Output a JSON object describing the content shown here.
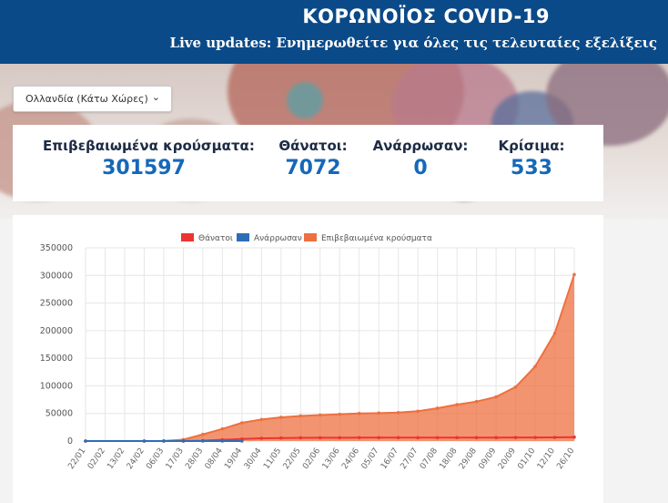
{
  "header": {
    "title": "ΚΟΡΩΝΟΪΟΣ COVID-19",
    "subtitle": "Live updates: Ενημερωθείτε για όλες τις τελευταίες εξελίξεις"
  },
  "country_select": {
    "value": "Ολλανδία (Κάτω Χώρες)"
  },
  "stats": [
    {
      "label": "Επιβεβαιωμένα κρούσματα:",
      "value": "301597"
    },
    {
      "label": "Θάνατοι:",
      "value": "7072"
    },
    {
      "label": "Ανάρρωσαν:",
      "value": "0"
    },
    {
      "label": "Κρίσιμα:",
      "value": "533"
    }
  ],
  "colors": {
    "header": "#0b4a88",
    "deaths": "#ee3333",
    "recovered": "#2c6db8",
    "confirmed": "#ee7040",
    "stat_value": "#1668b8"
  },
  "chart_data": {
    "type": "area",
    "legend_position": "top",
    "ylim": [
      0,
      350000
    ],
    "yticks": [
      0,
      50000,
      100000,
      150000,
      200000,
      250000,
      300000,
      350000
    ],
    "ytick_labels": [
      "0",
      "50000",
      "100000",
      "150000",
      "200000",
      "250000",
      "300000",
      "350000"
    ],
    "xtick_labels": [
      "22/01",
      "02/02",
      "13/02",
      "24/02",
      "06/03",
      "17/03",
      "28/03",
      "08/04",
      "19/04",
      "30/04",
      "11/05",
      "22/05",
      "02/06",
      "13/06",
      "24/06",
      "05/07",
      "16/07",
      "27/07",
      "07/08",
      "18/08",
      "29/08",
      "09/09",
      "20/09",
      "01/10",
      "12/10",
      "26/10"
    ],
    "series": [
      {
        "name": "Θάνατοι",
        "type": "line",
        "x": [
          "22/01",
          "24/02",
          "06/03",
          "17/03",
          "28/03",
          "08/04",
          "19/04",
          "30/04",
          "11/05",
          "22/05",
          "02/06",
          "13/06",
          "24/06",
          "05/07",
          "16/07",
          "27/07",
          "07/08",
          "18/08",
          "29/08",
          "09/09",
          "20/09",
          "01/10",
          "12/10",
          "26/10"
        ],
        "values": [
          0,
          0,
          0,
          50,
          700,
          2200,
          3700,
          4900,
          5400,
          5800,
          5900,
          6000,
          6100,
          6100,
          6100,
          6140,
          6170,
          6200,
          6240,
          6260,
          6300,
          6400,
          6600,
          7072
        ]
      },
      {
        "name": "Ανάρρωσαν",
        "type": "line",
        "x": [
          "22/01",
          "24/02",
          "06/03",
          "17/03",
          "28/03",
          "08/04",
          "19/04"
        ],
        "values": [
          0,
          0,
          0,
          0,
          0,
          0,
          0
        ]
      },
      {
        "name": "Επιβεβαιωμένα κρούσματα",
        "type": "area",
        "x": [
          "22/01",
          "24/02",
          "06/03",
          "17/03",
          "28/03",
          "08/04",
          "19/04",
          "30/04",
          "11/05",
          "22/05",
          "02/06",
          "13/06",
          "24/06",
          "05/07",
          "16/07",
          "27/07",
          "07/08",
          "18/08",
          "29/08",
          "09/09",
          "20/09",
          "01/10",
          "12/10",
          "26/10"
        ],
        "values": [
          0,
          0,
          300,
          2500,
          12000,
          22000,
          33000,
          39000,
          43000,
          45500,
          47000,
          48500,
          50000,
          50600,
          51500,
          54000,
          59500,
          66000,
          71500,
          80000,
          98000,
          135000,
          195000,
          301597
        ]
      }
    ]
  }
}
